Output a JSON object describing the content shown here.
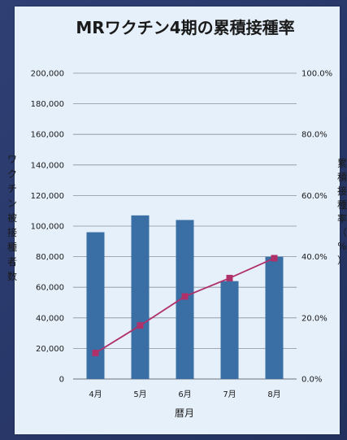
{
  "chart_data": {
    "type": "bar",
    "title": "MRワクチン4期の累積接種率",
    "xlabel": "暦月",
    "ylabel": "ワクチン被接種者数",
    "ylabel_right": "累積接種率（%）",
    "categories": [
      "4月",
      "5月",
      "6月",
      "7月",
      "8月"
    ],
    "ylim": [
      0,
      200000
    ],
    "ylim_right": [
      0,
      100
    ],
    "y_ticks": [
      "0",
      "20,000",
      "40,000",
      "60,000",
      "80,000",
      "100,000",
      "120,000",
      "140,000",
      "160,000",
      "180,000",
      "200,000"
    ],
    "y_right_ticks": [
      "0.0%",
      "20.0%",
      "40.0%",
      "60.0%",
      "80.0%",
      "100.0%"
    ],
    "grid": true,
    "series": [
      {
        "type": "bar",
        "axis": "left",
        "values": [
          96000,
          107000,
          104000,
          64000,
          80000
        ],
        "color": "#3a6fa6"
      },
      {
        "type": "line",
        "axis": "right",
        "values": [
          8.5,
          17.5,
          27,
          33,
          39.5
        ],
        "color": "#b0306a",
        "marker": "square"
      }
    ]
  }
}
